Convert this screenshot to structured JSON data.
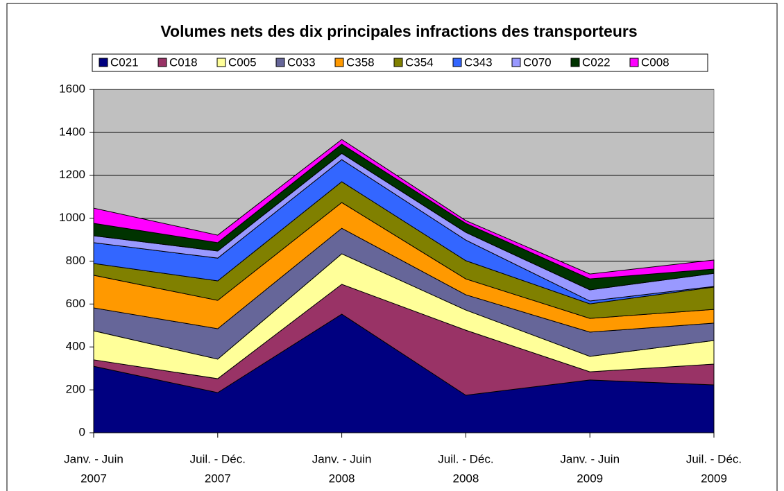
{
  "chart_data": {
    "type": "stacked_area",
    "title": "Volumes nets des dix principales infractions des transporteurs",
    "categories": [
      [
        "Janv.  - Juin",
        "2007"
      ],
      [
        "Juil. - Déc.",
        "2007"
      ],
      [
        "Janv.  - Juin",
        "2008"
      ],
      [
        "Juil. - Déc.",
        "2008"
      ],
      [
        "Janv.  - Juin",
        "2009"
      ],
      [
        "Juil. - Déc.",
        "2009"
      ]
    ],
    "series": [
      {
        "name": "C021",
        "color": "#000080",
        "values": [
          310,
          187,
          553,
          175,
          246,
          223
        ]
      },
      {
        "name": "C018",
        "color": "#993366",
        "values": [
          30,
          65,
          139,
          303,
          38,
          97
        ]
      },
      {
        "name": "C005",
        "color": "#FFFF99",
        "values": [
          135,
          91,
          142,
          94,
          72,
          110
        ]
      },
      {
        "name": "C033",
        "color": "#666699",
        "values": [
          107,
          142,
          119,
          71,
          113,
          81
        ]
      },
      {
        "name": "C358",
        "color": "#FF9900",
        "values": [
          152,
          132,
          120,
          74,
          64,
          64
        ]
      },
      {
        "name": "C354",
        "color": "#808000",
        "values": [
          55,
          91,
          97,
          85,
          68,
          104
        ]
      },
      {
        "name": "C343",
        "color": "#3366FF",
        "values": [
          97,
          106,
          103,
          96,
          13,
          3
        ]
      },
      {
        "name": "C070",
        "color": "#9999FF",
        "values": [
          32,
          33,
          29,
          36,
          52,
          61
        ]
      },
      {
        "name": "C022",
        "color": "#003300",
        "values": [
          58,
          39,
          43,
          42,
          51,
          20
        ]
      },
      {
        "name": "C008",
        "color": "#FF00FF",
        "values": [
          71,
          35,
          22,
          13,
          23,
          42
        ]
      }
    ],
    "ylim": [
      0,
      1600
    ],
    "yticks": [
      0,
      200,
      400,
      600,
      800,
      1000,
      1200,
      1400,
      1600
    ],
    "grid": true,
    "legend": "top",
    "plot_background": "#C0C0C0"
  }
}
